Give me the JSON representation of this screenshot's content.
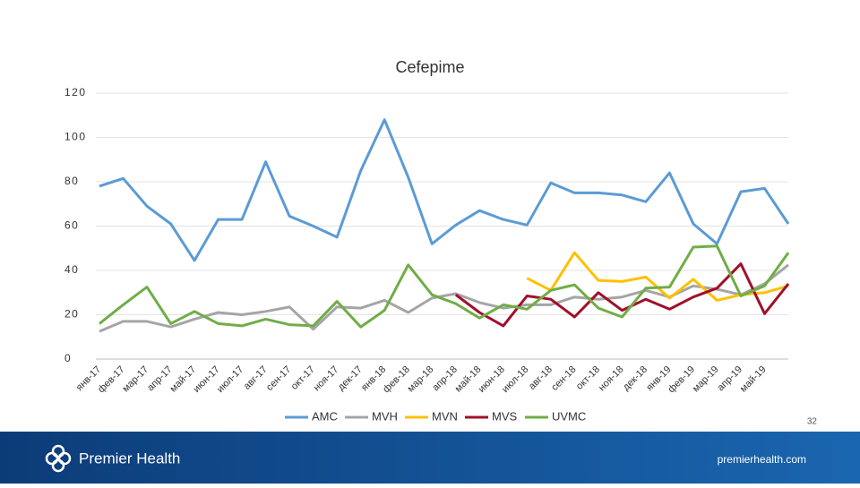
{
  "chart_data": {
    "type": "line",
    "title": "Cefepime",
    "categories": [
      "янв-17",
      "фев-17",
      "мар-17",
      "апр-17",
      "май-17",
      "июн-17",
      "июл-17",
      "авг-17",
      "сен-17",
      "окт-17",
      "ноя-17",
      "дек-17",
      "янв-18",
      "фев-18",
      "мар-18",
      "апр-18",
      "май-18",
      "июн-18",
      "июл-18",
      "авг-18",
      "сен-18",
      "окт-18",
      "ноя-18",
      "дек-18",
      "янв-19",
      "фев-19",
      "мар-19",
      "апр-19",
      "май-19",
      null
    ],
    "series": [
      {
        "name": "AMC",
        "color": "#5b9bd5",
        "values": [
          78,
          81.5,
          69,
          61,
          44.5,
          63,
          63,
          89,
          64.5,
          60,
          55,
          85,
          108,
          82,
          52,
          60.5,
          67,
          63,
          60.5,
          79.5,
          75,
          75,
          74,
          71,
          84,
          61,
          52,
          75.5,
          77,
          61
        ]
      },
      {
        "name": "MVH",
        "color": "#a5a5a5",
        "values": [
          12.5,
          17,
          17,
          14.5,
          18,
          21,
          20,
          21.5,
          23.5,
          13.5,
          23.5,
          23,
          26.5,
          21,
          27.5,
          29.5,
          25.5,
          23,
          24.5,
          24.5,
          28,
          27,
          28,
          31,
          28,
          33,
          31.5,
          29,
          34,
          42.5
        ]
      },
      {
        "name": "MVN",
        "color": "#ffc000",
        "values": [
          null,
          null,
          null,
          null,
          null,
          null,
          null,
          null,
          null,
          null,
          null,
          null,
          null,
          null,
          null,
          null,
          null,
          null,
          36.5,
          31,
          48,
          35.5,
          35,
          37,
          27.5,
          36,
          26.5,
          29,
          30,
          33
        ]
      },
      {
        "name": "MVS",
        "color": "#a0102a",
        "values": [
          null,
          null,
          null,
          null,
          null,
          null,
          null,
          null,
          null,
          null,
          null,
          null,
          null,
          null,
          null,
          29,
          21,
          15,
          28.5,
          27,
          19,
          30,
          22,
          27,
          22.5,
          28,
          32,
          43,
          20.5,
          34
        ]
      },
      {
        "name": "UVMC",
        "color": "#70ad47",
        "values": [
          16,
          24.5,
          32.5,
          16,
          21.5,
          16,
          15,
          18,
          15.5,
          15,
          26,
          14.5,
          22,
          42.5,
          29,
          25,
          18.5,
          24.5,
          22.5,
          31,
          33.5,
          23,
          19,
          32,
          32.5,
          50.5,
          51,
          28.5,
          33,
          48
        ]
      }
    ],
    "ylim": [
      0,
      120
    ],
    "yticks": [
      0,
      20,
      40,
      60,
      80,
      100,
      120
    ],
    "grid": true,
    "legend": "bottom"
  },
  "footer": {
    "brand": "Premier Health",
    "url": "premierhealth.com",
    "page": "32"
  }
}
